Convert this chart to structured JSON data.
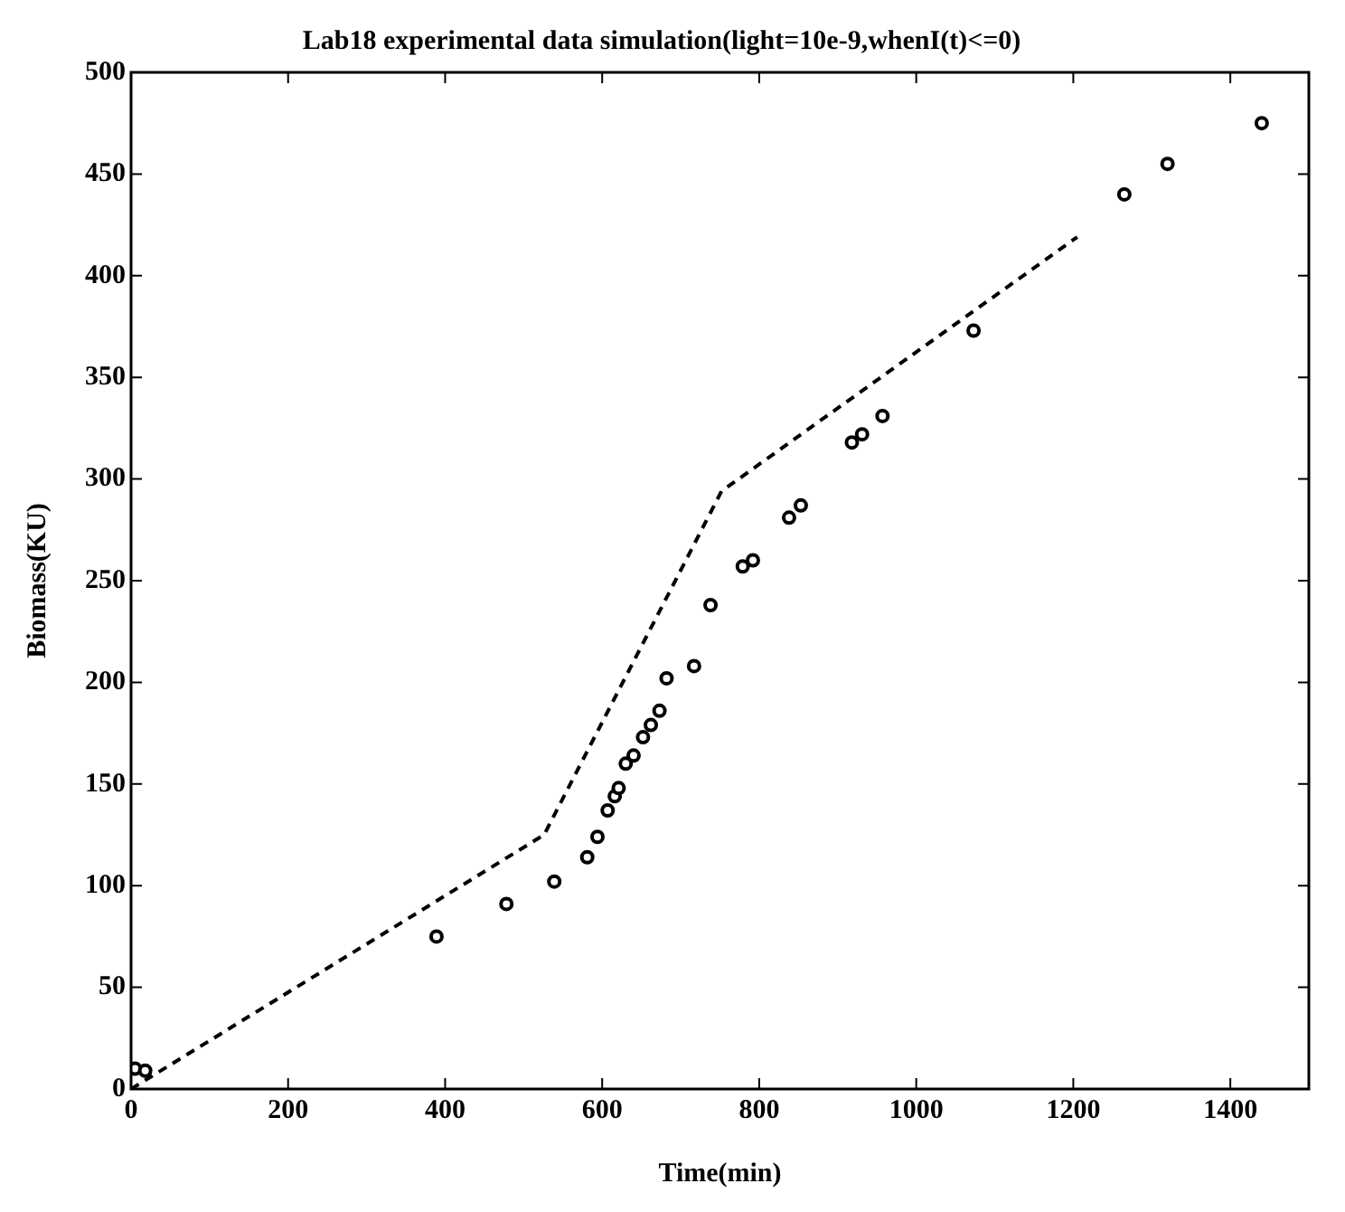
{
  "chart_data": {
    "type": "scatter",
    "title": "Lab18 experimental data simulation(light=10e-9,whenI(t)<=0)",
    "xlabel": "Time(min)",
    "ylabel": "Biomass(KU)",
    "xlim": [
      0,
      1500
    ],
    "xticks": [
      0,
      200,
      400,
      600,
      800,
      1000,
      1200,
      1400
    ],
    "ylim": [
      0,
      500
    ],
    "yticks": [
      0,
      50,
      100,
      150,
      200,
      250,
      300,
      350,
      400,
      450,
      500
    ],
    "grid": false,
    "legend": false,
    "series": [
      {
        "color": "#000000",
        "marker": "circle",
        "x": [
          5,
          18,
          389,
          478,
          539,
          581,
          594,
          607,
          616,
          621,
          630,
          640,
          652,
          662,
          673,
          682,
          717,
          738,
          779,
          792,
          838,
          853,
          918,
          931,
          957,
          1073,
          1265,
          1320,
          1440
        ],
        "values": [
          10,
          9,
          75,
          91,
          102,
          114,
          124,
          137,
          144,
          148,
          160,
          164,
          173,
          179,
          186,
          202,
          208,
          238,
          257,
          260,
          281,
          287,
          318,
          322,
          331,
          373,
          440,
          455,
          475
        ]
      },
      {
        "type": "line",
        "color": "#000000",
        "marker": "none",
        "line_style": "dashed",
        "x": [
          0,
          526,
          752,
          1205
        ],
        "values": [
          0,
          125,
          294,
          419
        ]
      }
    ]
  }
}
